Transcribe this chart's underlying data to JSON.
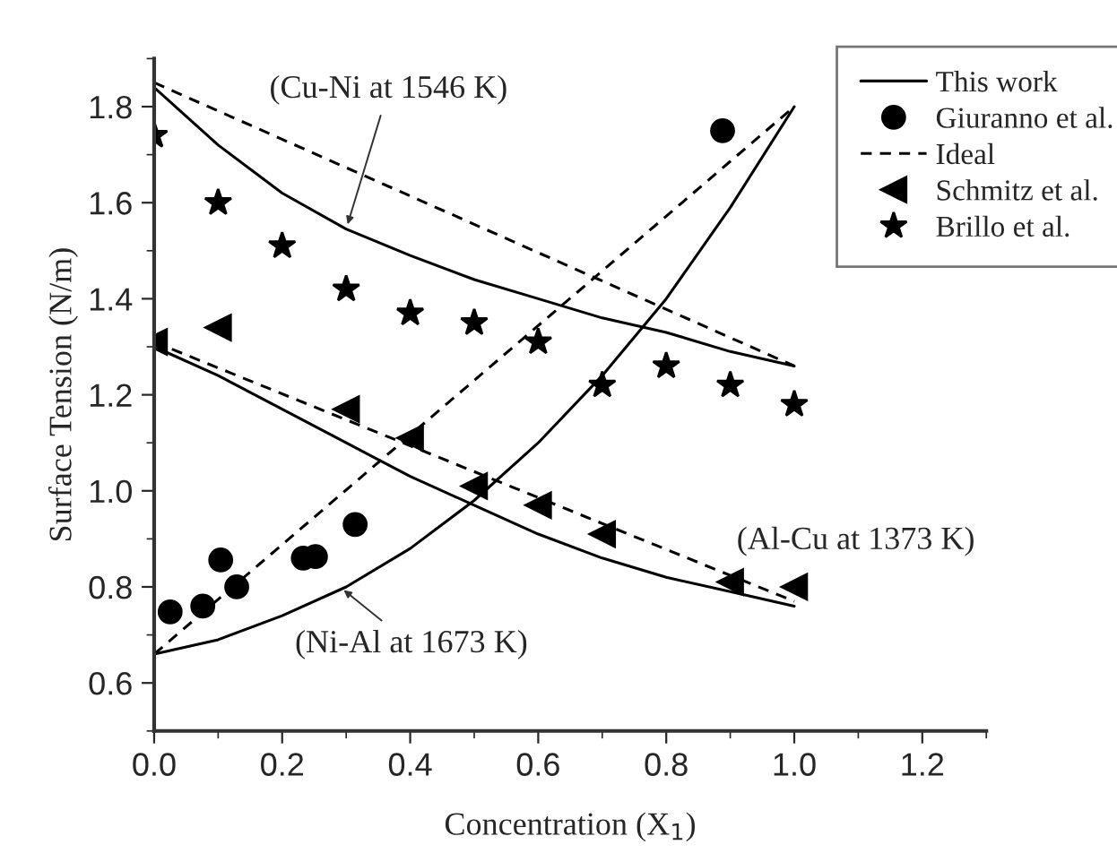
{
  "chart_data": {
    "type": "line",
    "xlabel": "Concentration (X$_{1}$)",
    "ylabel": "Surface Tension (N/m)",
    "xlim": [
      0,
      1.3
    ],
    "ylim": [
      0.5,
      1.9
    ],
    "xticks": [
      {
        "value": 0,
        "label": "0.0"
      },
      {
        "value": 0.2,
        "label": "0.2"
      },
      {
        "value": 0.4,
        "label": "0.4"
      },
      {
        "value": 0.6,
        "label": "0.6"
      },
      {
        "value": 0.8,
        "label": "0.8"
      },
      {
        "value": 1.0,
        "label": "1.0"
      },
      {
        "value": 1.2,
        "label": "1.2"
      }
    ],
    "yticks": [
      {
        "value": 0.6,
        "label": "0.6"
      },
      {
        "value": 0.8,
        "label": "0.8"
      },
      {
        "value": 1.0,
        "label": "1.0"
      },
      {
        "value": 1.2,
        "label": "1.2"
      },
      {
        "value": 1.4,
        "label": "1.4"
      },
      {
        "value": 1.6,
        "label": "1.6"
      },
      {
        "value": 1.8,
        "label": "1.8"
      }
    ],
    "grid": false,
    "legend": "top right",
    "series": [
      {
        "name": "This work",
        "line_style": "solid",
        "marker": "none",
        "color": "#000000",
        "x": [
          0,
          0.1,
          0.2,
          0.3,
          0.4,
          0.5,
          0.6,
          0.7,
          0.8,
          0.9,
          1.0
        ],
        "values": [
          1.84,
          1.72,
          1.62,
          1.545,
          1.49,
          1.44,
          1.4,
          1.36,
          1.33,
          1.29,
          1.26
        ]
      },
      {
        "name": "Giuranno et al.",
        "type": "scatter",
        "marker": "circle",
        "color": "#000000",
        "x": [
          0.025,
          0.076,
          0.104,
          0.129,
          0.233,
          0.252,
          0.314,
          0.888
        ],
        "values": [
          0.748,
          0.76,
          0.856,
          0.8,
          0.86,
          0.863,
          0.93,
          1.75
        ]
      },
      {
        "name": "Ideal",
        "type": "line",
        "line_style": "dashed",
        "marker": "none",
        "color": "#000000",
        "x": [
          0,
          1.0
        ],
        "values": [
          1.85,
          1.26
        ]
      },
      {
        "name": "Schmitz et al.",
        "type": "scatter",
        "marker": "triangle",
        "color": "#000000",
        "x": [
          0,
          0.1,
          0.3,
          0.4,
          0.5,
          0.6,
          0.7,
          0.9,
          1.0
        ],
        "values": [
          1.31,
          1.34,
          1.17,
          1.11,
          1.01,
          0.97,
          0.91,
          0.81,
          0.8
        ]
      },
      {
        "name": "Brillo et al.",
        "type": "scatter",
        "marker": "star",
        "color": "#000000",
        "x": [
          0,
          0.1,
          0.2,
          0.3,
          0.4,
          0.5,
          0.6,
          0.7,
          0.8,
          0.9,
          1.0
        ],
        "values": [
          1.74,
          1.6,
          1.51,
          1.42,
          1.37,
          1.35,
          1.31,
          1.22,
          1.26,
          1.22,
          1.18
        ]
      },
      {
        "type": "line",
        "line_style": "solid",
        "marker": "none",
        "color": "#000000",
        "x": [
          0,
          0.1,
          0.2,
          0.3,
          0.4,
          0.5,
          0.6,
          0.7,
          0.8,
          0.9,
          1.0
        ],
        "values": [
          1.3,
          1.24,
          1.17,
          1.1,
          1.03,
          0.97,
          0.91,
          0.86,
          0.82,
          0.79,
          0.76
        ]
      },
      {
        "type": "line",
        "line_style": "dashed",
        "marker": "none",
        "color": "#000000",
        "x": [
          0,
          1.0
        ],
        "values": [
          1.31,
          0.77
        ]
      },
      {
        "type": "line",
        "line_style": "solid",
        "marker": "none",
        "color": "#000000",
        "x": [
          0,
          0.1,
          0.2,
          0.3,
          0.4,
          0.5,
          0.6,
          0.7,
          0.8,
          0.9,
          1.0
        ],
        "values": [
          0.66,
          0.69,
          0.74,
          0.8,
          0.88,
          0.98,
          1.1,
          1.24,
          1.4,
          1.59,
          1.8
        ]
      },
      {
        "type": "line",
        "line_style": "dashed",
        "marker": "none",
        "color": "#000000",
        "x": [
          0,
          1.0
        ],
        "values": [
          0.66,
          1.8
        ]
      }
    ],
    "annotations": [
      {
        "text": "(Cu-Ni at 1546 K)",
        "x": 0.3,
        "y": 1.545
      },
      {
        "text": "(Ni-Al at 1673 K)",
        "x": 0.29,
        "y": 0.8
      },
      {
        "text": "(Al-Cu at 1373 K)",
        "x": 0.9,
        "y": 0.8
      }
    ]
  }
}
